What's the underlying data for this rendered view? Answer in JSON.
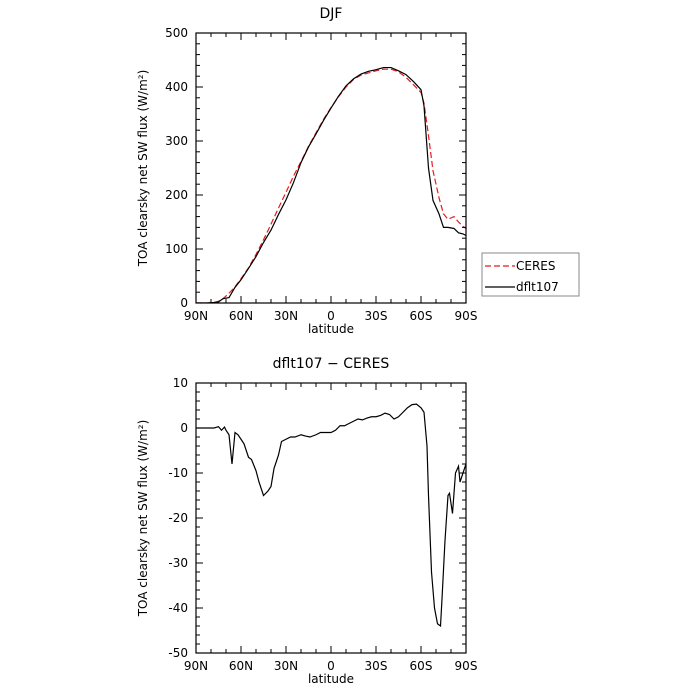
{
  "chart_data": [
    {
      "type": "line",
      "title": "DJF",
      "xlabel": "latitude",
      "ylabel": "TOA clearsky net SW flux (W/m²)",
      "xlim": [
        90,
        -90
      ],
      "ylim": [
        0,
        500
      ],
      "x_ticks": [
        90,
        60,
        30,
        0,
        -30,
        -60,
        -90
      ],
      "x_tick_labels": [
        "90N",
        "60N",
        "30N",
        "0",
        "30S",
        "60S",
        "90S"
      ],
      "y_ticks": [
        0,
        100,
        200,
        300,
        400,
        500
      ],
      "legend": {
        "placement": "right",
        "entries": [
          "CERES",
          "dflt107"
        ]
      },
      "series": [
        {
          "name": "CERES",
          "color": "#e8191c",
          "dash": "dashed",
          "x": [
            90,
            82,
            78,
            75,
            72,
            68,
            64,
            60,
            55,
            50,
            45,
            40,
            35,
            30,
            25,
            20,
            15,
            10,
            5,
            0,
            -5,
            -10,
            -15,
            -20,
            -25,
            -30,
            -35,
            -40,
            -45,
            -50,
            -55,
            -60,
            -62,
            -65,
            -68,
            -72,
            -75,
            -78,
            -82,
            -85,
            -88,
            -90
          ],
          "y": [
            0,
            0,
            1,
            3,
            8,
            18,
            30,
            45,
            65,
            90,
            117,
            146,
            176,
            205,
            235,
            262,
            290,
            315,
            340,
            362,
            382,
            400,
            414,
            422,
            426,
            430,
            433,
            433,
            428,
            418,
            404,
            390,
            370,
            310,
            245,
            195,
            165,
            155,
            160,
            150,
            142,
            138
          ]
        },
        {
          "name": "dflt107",
          "color": "#000000",
          "dash": "solid",
          "x": [
            90,
            82,
            78,
            75,
            72,
            68,
            64,
            60,
            55,
            50,
            45,
            40,
            35,
            30,
            25,
            20,
            15,
            10,
            5,
            0,
            -5,
            -10,
            -15,
            -20,
            -25,
            -30,
            -35,
            -40,
            -45,
            -50,
            -55,
            -60,
            -62,
            -65,
            -68,
            -72,
            -75,
            -78,
            -82,
            -85,
            -88,
            -90
          ],
          "y": [
            0,
            0,
            1,
            2,
            8,
            10,
            29,
            43,
            64,
            86,
            112,
            135,
            164,
            191,
            223,
            260,
            289,
            313,
            338,
            361,
            383,
            402,
            415,
            424,
            429,
            432,
            436,
            436,
            430,
            423,
            410,
            395,
            365,
            250,
            190,
            165,
            140,
            140,
            138,
            130,
            128,
            125
          ]
        }
      ]
    },
    {
      "type": "line",
      "title": "dflt107 − CERES",
      "xlabel": "latitude",
      "ylabel": "TOA clearsky net SW flux (W/m²)",
      "xlim": [
        90,
        -90
      ],
      "ylim": [
        -50,
        10
      ],
      "x_ticks": [
        90,
        60,
        30,
        0,
        -30,
        -60,
        -90
      ],
      "x_tick_labels": [
        "90N",
        "60N",
        "30N",
        "0",
        "30S",
        "60S",
        "90S"
      ],
      "y_ticks": [
        -50,
        -40,
        -30,
        -20,
        -10,
        0,
        10
      ],
      "series": [
        {
          "color": "#000000",
          "dash": "solid",
          "x": [
            90,
            84,
            78,
            75,
            73,
            71,
            70,
            68,
            66,
            64,
            62,
            60,
            58,
            55,
            53,
            50,
            48,
            45,
            42,
            40,
            38,
            36,
            35,
            33,
            30,
            27,
            24,
            20,
            17,
            14,
            10,
            7,
            4,
            0,
            -3,
            -6,
            -9,
            -12,
            -15,
            -18,
            -21,
            -24,
            -27,
            -30,
            -33,
            -36,
            -39,
            -42,
            -45,
            -48,
            -51,
            -54,
            -57,
            -60,
            -62,
            -64,
            -65,
            -67,
            -69,
            -71,
            -73,
            -74,
            -76,
            -78,
            -79,
            -81,
            -83,
            -85,
            -86,
            -88,
            -90
          ],
          "y": [
            0,
            0,
            0,
            0.3,
            -0.5,
            0.2,
            -0.5,
            -1.5,
            -8,
            -1,
            -1.5,
            -2.5,
            -3.5,
            -6.5,
            -7,
            -9.5,
            -12,
            -15,
            -14,
            -13,
            -9,
            -7,
            -6,
            -3,
            -2.5,
            -2,
            -2,
            -1.5,
            -1.8,
            -2,
            -1.5,
            -1,
            -1,
            -1,
            -0.5,
            0.5,
            0.5,
            1,
            1.5,
            2,
            1.8,
            2.2,
            2.5,
            2.5,
            2.8,
            3.3,
            3,
            2,
            2.5,
            3.5,
            4.5,
            5.2,
            5.3,
            4.5,
            3.5,
            -4,
            -15,
            -32,
            -40,
            -43.5,
            -44,
            -38,
            -25,
            -15,
            -14.5,
            -19,
            -10,
            -8.5,
            -12,
            -10,
            -8
          ]
        }
      ]
    }
  ]
}
